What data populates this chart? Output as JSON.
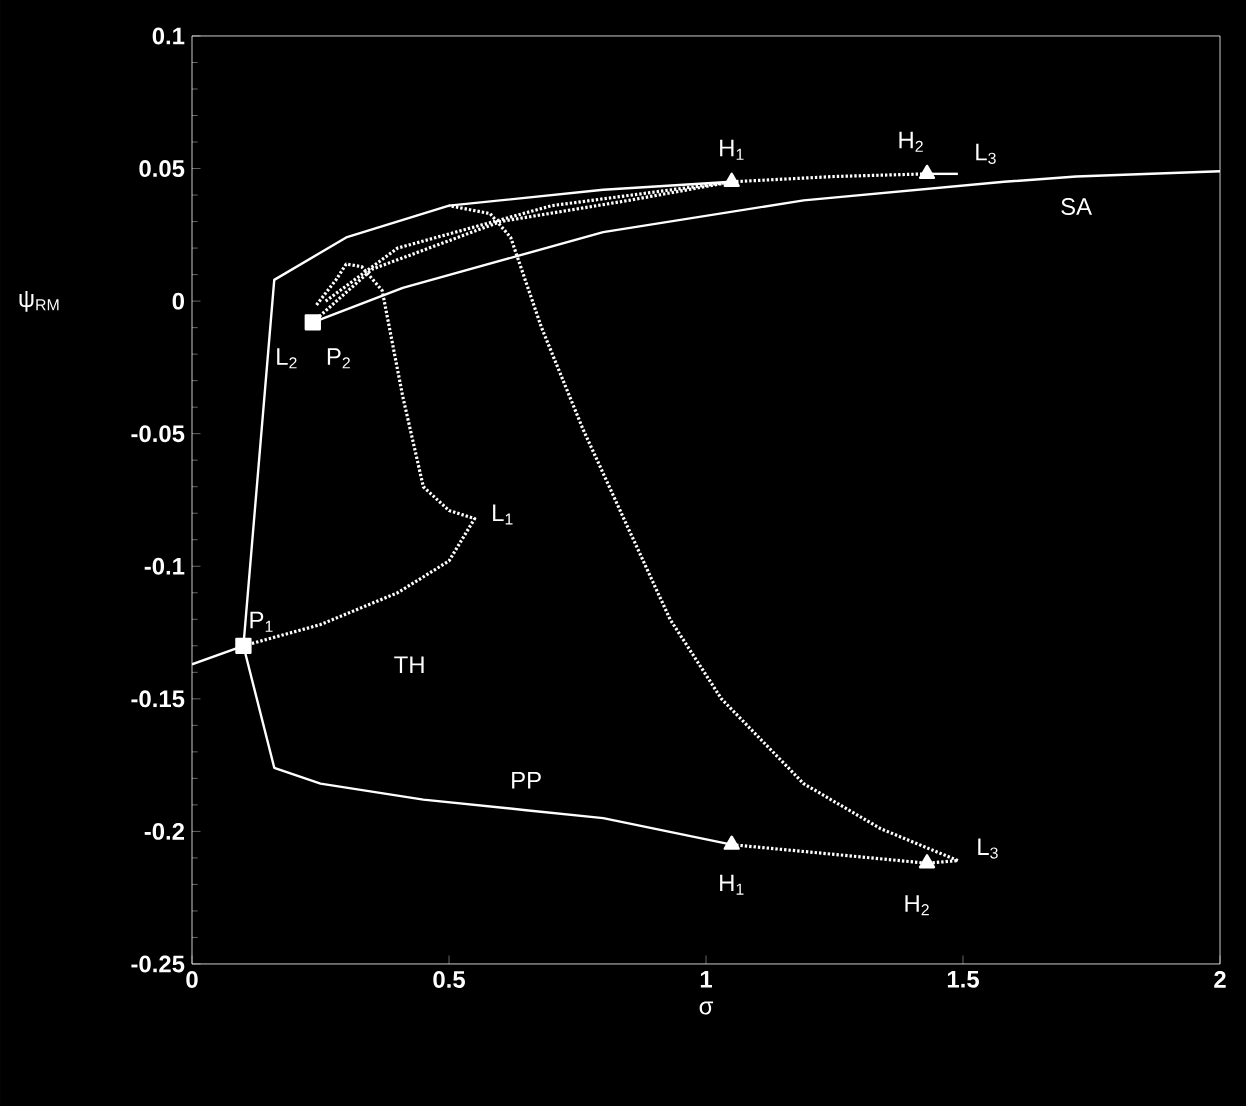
{
  "chart_data": {
    "type": "line",
    "xlabel": "σ",
    "ylabel": "ψ$_{RM}$",
    "xlim": [
      0,
      2
    ],
    "ylim": [
      -0.25,
      0.1
    ],
    "xticks": [
      0,
      0.5,
      1,
      1.5,
      2
    ],
    "yticks": [
      0.1,
      0.05,
      0,
      -0.05,
      -0.1,
      -0.15,
      -0.2,
      -0.25
    ],
    "grid": false,
    "series": [
      {
        "color": "#ffffff",
        "line_style": "solid",
        "marker": "none",
        "x": [
          0,
          0.1,
          0.16,
          0.3,
          0.5,
          0.8,
          1.05
        ],
        "values": [
          -0.137,
          -0.13,
          0.008,
          0.024,
          0.036,
          0.042,
          0.045
        ]
      },
      {
        "color": "#ffffff",
        "line_style": "dotted",
        "marker": "none",
        "x": [
          1.05,
          1.25,
          1.43
        ],
        "values": [
          0.045,
          0.047,
          0.048
        ]
      },
      {
        "color": "#ffffff",
        "line_style": "solid",
        "marker": "none",
        "x": [
          1.43,
          1.49
        ],
        "values": [
          0.048,
          0.048
        ]
      },
      {
        "color": "#ffffff",
        "line_style": "solid",
        "marker": "none",
        "x": [
          0.235,
          0.41,
          0.8,
          1.19,
          1.58,
          1.72,
          2.0
        ],
        "values": [
          -0.008,
          0.005,
          0.026,
          0.038,
          0.045,
          0.047,
          0.049
        ]
      },
      {
        "color": "#ffffff",
        "line_style": "solid",
        "marker": "none",
        "x": [
          0.1,
          0.16,
          0.25,
          0.45,
          0.65,
          0.8,
          1.05
        ],
        "values": [
          -0.13,
          -0.176,
          -0.182,
          -0.188,
          -0.192,
          -0.195,
          -0.205
        ]
      },
      {
        "color": "#ffffff",
        "line_style": "dotted",
        "marker": "none",
        "x": [
          1.05,
          1.43,
          1.49
        ],
        "values": [
          -0.205,
          -0.212,
          -0.211
        ]
      },
      {
        "color": "#ffffff",
        "line_style": "dotted",
        "marker": "none",
        "x": [
          1.49,
          1.34,
          1.19,
          1.03,
          0.93,
          0.84,
          0.76,
          0.68,
          0.62,
          0.58,
          0.5
        ],
        "values": [
          -0.211,
          -0.199,
          -0.182,
          -0.15,
          -0.12,
          -0.082,
          -0.048,
          -0.01,
          0.024,
          0.033,
          0.036
        ]
      },
      {
        "color": "#ffffff",
        "line_style": "dotted",
        "marker": "none",
        "x": [
          0.1,
          0.25,
          0.4,
          0.5,
          0.55,
          0.5,
          0.45,
          0.41,
          0.37,
          0.33,
          0.3,
          0.28,
          0.24
        ],
        "values": [
          -0.13,
          -0.122,
          -0.11,
          -0.098,
          -0.082,
          -0.079,
          -0.07,
          -0.036,
          0.004,
          0.013,
          0.014,
          0.008,
          -0.002
        ]
      },
      {
        "color": "#ffffff",
        "line_style": "dotted",
        "marker": "none",
        "x": [
          0.235,
          0.35,
          0.6,
          0.85,
          1.05
        ],
        "values": [
          -0.008,
          0.012,
          0.03,
          0.038,
          0.045
        ]
      },
      {
        "color": "#ffffff",
        "line_style": "dotted",
        "marker": "none",
        "x": [
          0.26,
          0.4,
          0.7,
          1.05
        ],
        "values": [
          0.0,
          0.02,
          0.036,
          0.045
        ]
      },
      {
        "type": "scatter",
        "color": "#ffffff",
        "marker": "square",
        "x": [
          0.1,
          0.235
        ],
        "values": [
          -0.13,
          -0.008
        ]
      },
      {
        "type": "scatter",
        "color": "#ffffff",
        "marker": "triangle",
        "x": [
          1.05,
          1.43,
          1.05,
          1.43
        ],
        "values": [
          0.045,
          0.048,
          -0.205,
          -0.212
        ]
      }
    ],
    "annotations": [
      {
        "text": "H$_{1}$",
        "x": 1.05,
        "y": 0.045
      },
      {
        "text": "H$_{2}$",
        "x": 1.43,
        "y": 0.048
      },
      {
        "text": "L$_{3}$",
        "x": 1.49,
        "y": 0.048
      },
      {
        "text": "SA",
        "x": 1.72,
        "y": 0.047
      },
      {
        "text": "L$_{2}$",
        "x": 0.235,
        "y": -0.008
      },
      {
        "text": "P$_{2}$",
        "x": 0.235,
        "y": -0.008
      },
      {
        "text": "L$_{1}$",
        "x": 0.55,
        "y": -0.082
      },
      {
        "text": "P$_{1}$",
        "x": 0.1,
        "y": -0.13
      },
      {
        "text": "TH",
        "x": 0.4,
        "y": -0.11
      },
      {
        "text": "PP",
        "x": 0.65,
        "y": -0.192
      },
      {
        "text": "H$_{1}$",
        "x": 1.05,
        "y": -0.205
      },
      {
        "text": "H$_{2}$",
        "x": 1.43,
        "y": -0.212
      },
      {
        "text": "L$_{3}$",
        "x": 1.49,
        "y": -0.211
      }
    ]
  }
}
